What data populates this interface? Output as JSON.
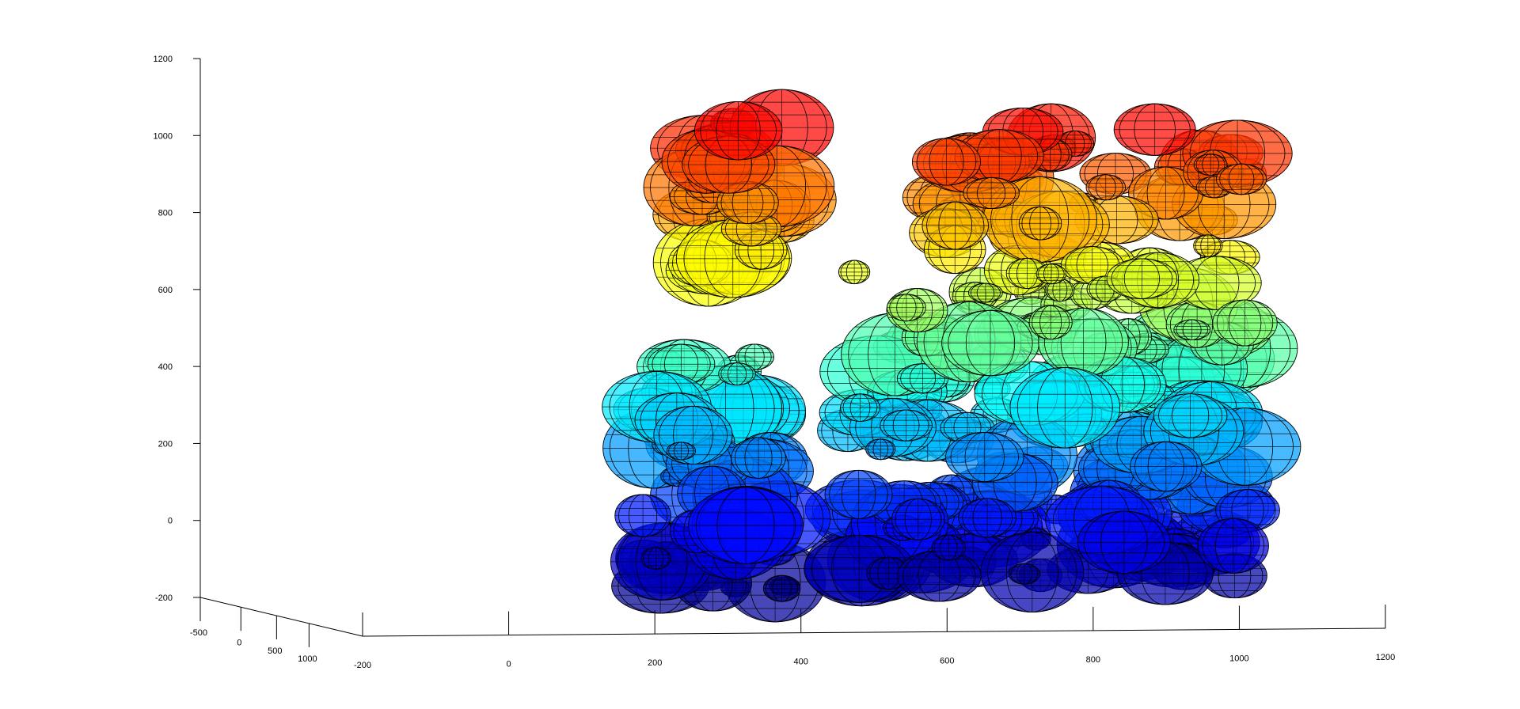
{
  "chart_data": {
    "type": "scatter",
    "variant": "3d-ellipsoid-clusters",
    "title": "",
    "xlabel": "",
    "ylabel": "",
    "zlabel": "",
    "grid": false,
    "colormap": "jet (by z)",
    "xlim": [
      -200,
      1200
    ],
    "ylim": [
      -500,
      1000
    ],
    "zlim": [
      -200,
      1200
    ],
    "x_ticks": [
      "-200",
      "0",
      "200",
      "400",
      "600",
      "800",
      "1000",
      "1200"
    ],
    "y_ticks": [
      "-500",
      "0",
      "500",
      "1000"
    ],
    "z_ticks": [
      "-200",
      "0",
      "200",
      "400",
      "600",
      "800",
      "1000",
      "1200"
    ],
    "clusters": [
      {
        "x": [
          100,
          250
        ],
        "z": [
          650,
          1050
        ]
      },
      {
        "x": [
          480,
          1000
        ],
        "z": [
          650,
          1030
        ]
      },
      {
        "x": [
          20,
          250
        ],
        "z": [
          -180,
          430
        ]
      },
      {
        "x": [
          350,
          1000
        ],
        "z": [
          -150,
          650
        ]
      }
    ]
  }
}
